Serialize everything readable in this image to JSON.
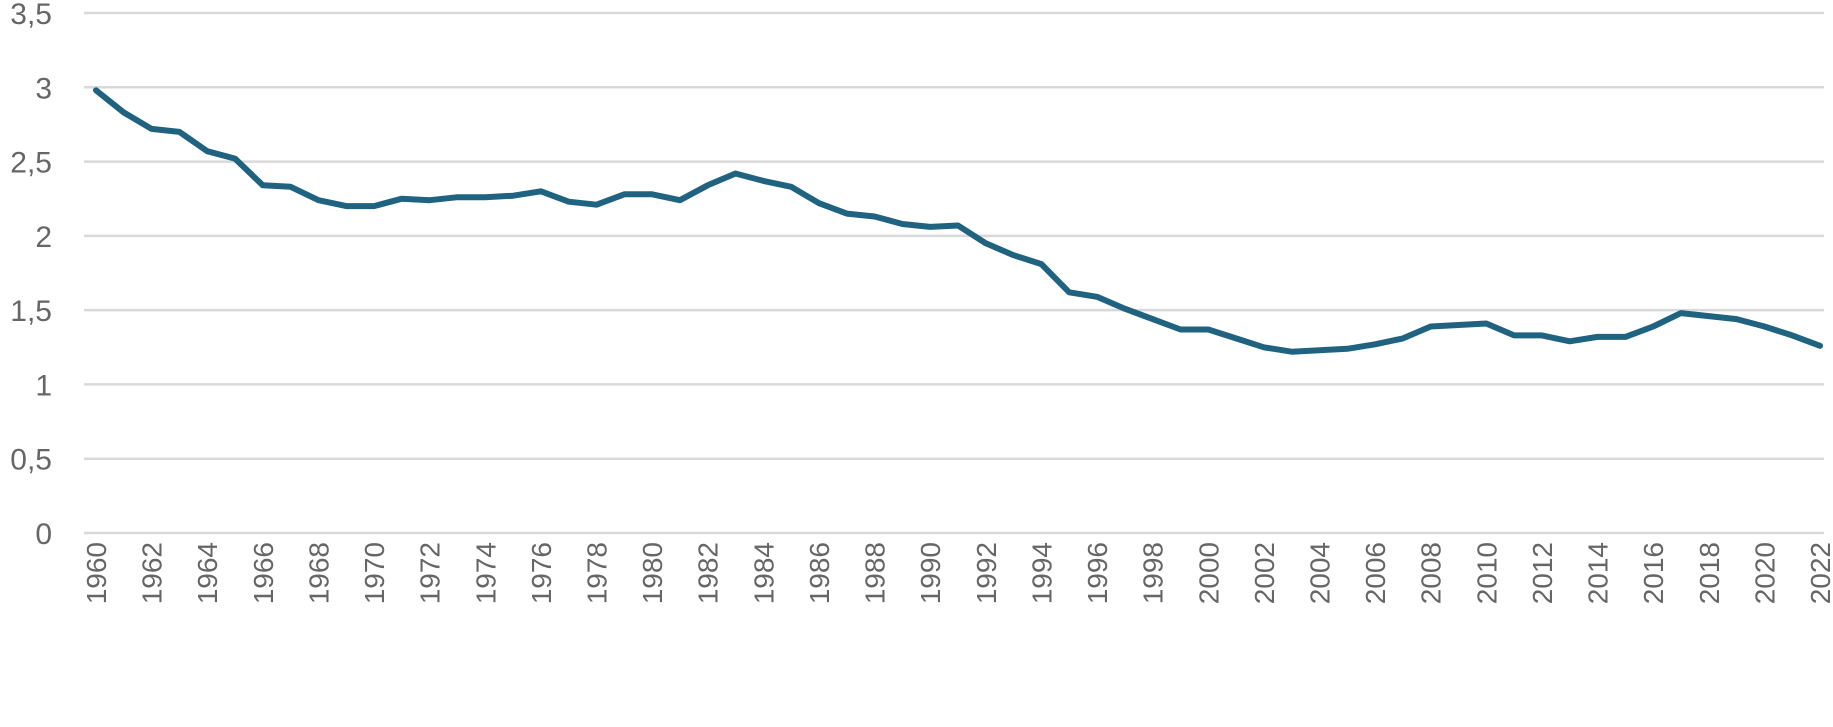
{
  "chart_data": {
    "type": "line",
    "title": "",
    "xlabel": "",
    "ylabel": "",
    "ylim": [
      0,
      3.5
    ],
    "y_ticks": [
      0,
      0.5,
      1,
      1.5,
      2,
      2.5,
      3,
      3.5
    ],
    "y_tick_labels": [
      "0",
      "0,5",
      "1",
      "1,5",
      "2",
      "2,5",
      "3",
      "3,5"
    ],
    "x_tick_labels": [
      "1960",
      "1962",
      "1964",
      "1966",
      "1968",
      "1970",
      "1972",
      "1974",
      "1976",
      "1978",
      "1980",
      "1982",
      "1984",
      "1986",
      "1988",
      "1990",
      "1992",
      "1994",
      "1996",
      "1998",
      "2000",
      "2002",
      "2004",
      "2006",
      "2008",
      "2010",
      "2012",
      "2014",
      "2016",
      "2018",
      "2020",
      "2022"
    ],
    "grid": true,
    "line_color": "#1f6380",
    "grid_color": "#d9d9d9",
    "x": [
      1960,
      1961,
      1962,
      1963,
      1964,
      1965,
      1966,
      1967,
      1968,
      1969,
      1970,
      1971,
      1972,
      1973,
      1974,
      1975,
      1976,
      1977,
      1978,
      1979,
      1980,
      1981,
      1982,
      1983,
      1984,
      1985,
      1986,
      1987,
      1988,
      1989,
      1990,
      1991,
      1992,
      1993,
      1994,
      1995,
      1996,
      1997,
      1998,
      1999,
      2000,
      2001,
      2002,
      2003,
      2004,
      2005,
      2006,
      2007,
      2008,
      2009,
      2010,
      2011,
      2012,
      2013,
      2014,
      2015,
      2016,
      2017,
      2018,
      2019,
      2020,
      2021,
      2022
    ],
    "series": [
      {
        "values": [
          2.98,
          2.83,
          2.72,
          2.7,
          2.57,
          2.52,
          2.34,
          2.33,
          2.24,
          2.2,
          2.2,
          2.25,
          2.24,
          2.26,
          2.26,
          2.27,
          2.3,
          2.23,
          2.21,
          2.28,
          2.28,
          2.24,
          2.34,
          2.42,
          2.37,
          2.33,
          2.22,
          2.15,
          2.13,
          2.08,
          2.06,
          2.07,
          1.95,
          1.87,
          1.81,
          1.62,
          1.59,
          1.51,
          1.44,
          1.37,
          1.37,
          1.31,
          1.25,
          1.22,
          1.23,
          1.24,
          1.27,
          1.31,
          1.39,
          1.4,
          1.41,
          1.33,
          1.33,
          1.29,
          1.32,
          1.32,
          1.39,
          1.48,
          1.46,
          1.44,
          1.39,
          1.33,
          1.26
        ]
      }
    ]
  }
}
